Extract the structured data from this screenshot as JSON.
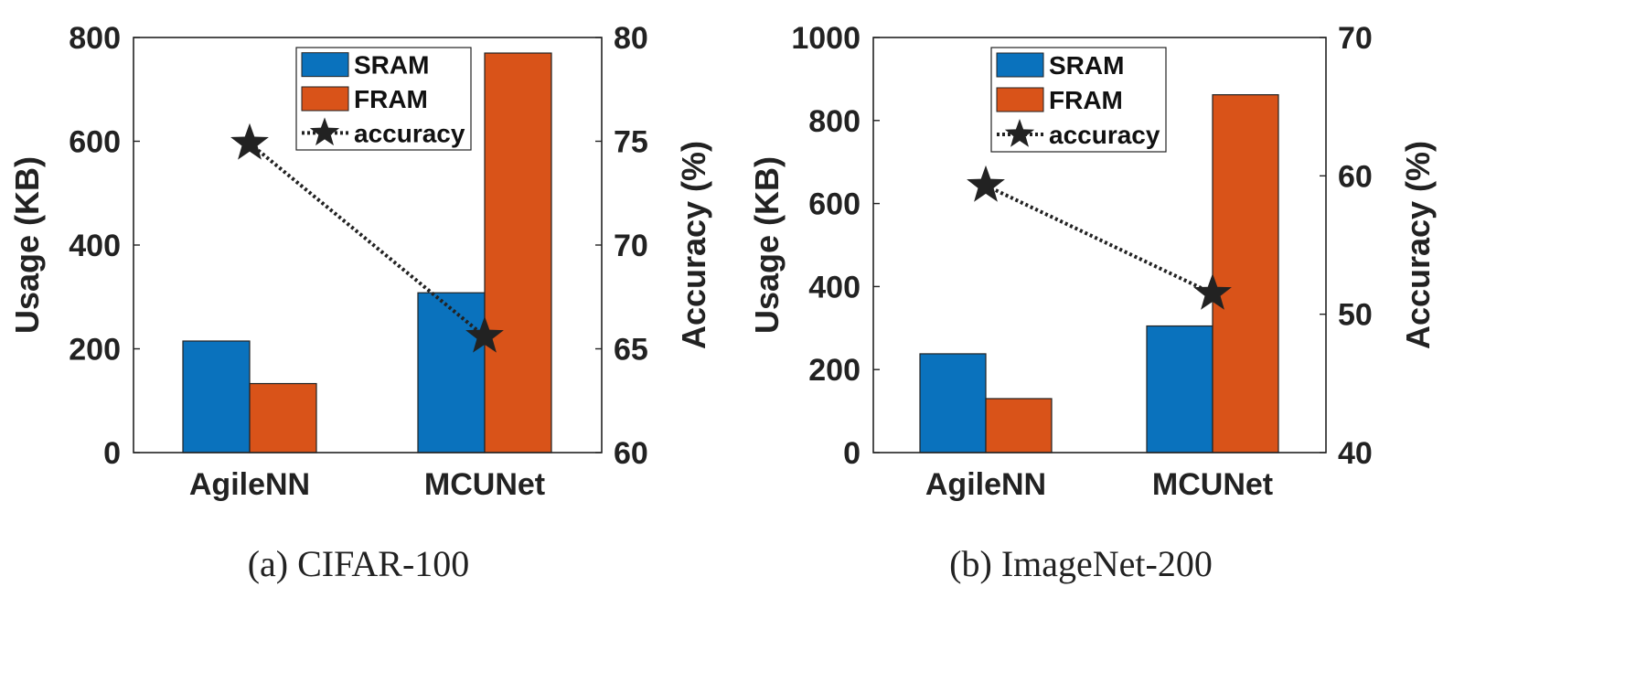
{
  "chart_data": [
    {
      "type": "bar",
      "caption": "(a)  CIFAR-100",
      "categories": [
        "AgileNN",
        "MCUNet"
      ],
      "series": [
        {
          "name": "SRAM",
          "values": [
            215,
            308
          ],
          "color": "#0a72bd"
        },
        {
          "name": "FRAM",
          "values": [
            133,
            770
          ],
          "color": "#d95319"
        }
      ],
      "line_series": {
        "name": "accuracy",
        "values": [
          74.9,
          65.6
        ],
        "axis": "right",
        "marker": "star",
        "style": "dotted",
        "color": "#222222"
      },
      "ylabel": "Usage (KB)",
      "ylim": [
        0,
        800
      ],
      "yticks": [
        "0",
        "200",
        "400",
        "600",
        "800"
      ],
      "y2label": "Accuracy (%)",
      "y2lim": [
        60,
        80
      ],
      "y2ticks": [
        "60",
        "65",
        "70",
        "75",
        "80"
      ],
      "legend_position": "top-right",
      "grid": false
    },
    {
      "type": "bar",
      "caption": "(b)  ImageNet-200",
      "categories": [
        "AgileNN",
        "MCUNet"
      ],
      "series": [
        {
          "name": "SRAM",
          "values": [
            238,
            305
          ],
          "color": "#0a72bd"
        },
        {
          "name": "FRAM",
          "values": [
            130,
            862
          ],
          "color": "#d95319"
        }
      ],
      "line_series": {
        "name": "accuracy",
        "values": [
          59.3,
          51.5
        ],
        "axis": "right",
        "marker": "star",
        "style": "dotted",
        "color": "#222222"
      },
      "ylabel": "Usage (KB)",
      "ylim": [
        0,
        1000
      ],
      "yticks": [
        "0",
        "200",
        "400",
        "600",
        "800",
        "1000"
      ],
      "y2label": "Accuracy (%)",
      "y2lim": [
        40,
        70
      ],
      "y2ticks": [
        "40",
        "50",
        "60",
        "70"
      ],
      "legend_position": "top-center",
      "grid": false
    }
  ]
}
